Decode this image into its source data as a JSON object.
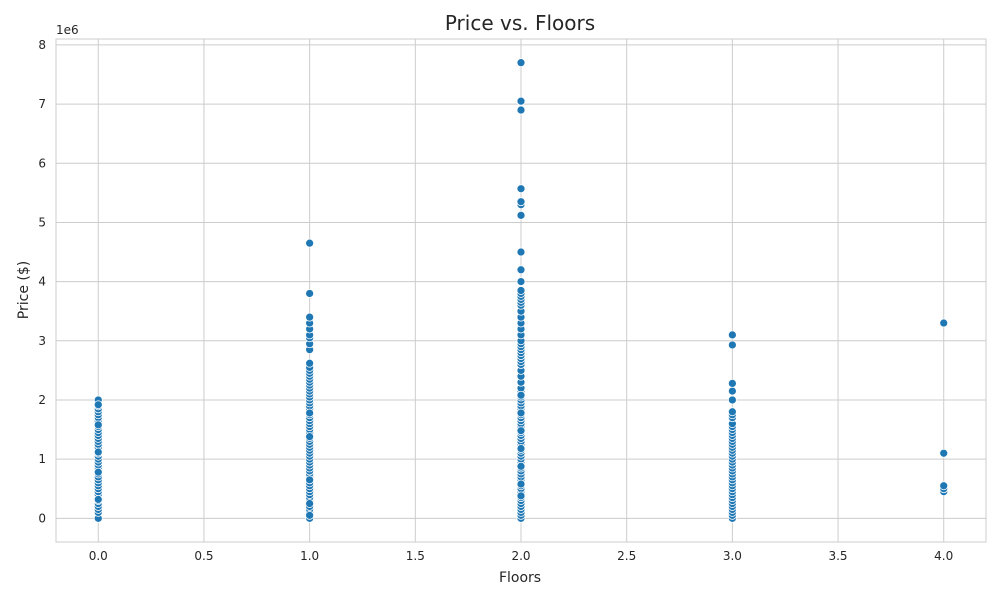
{
  "chart_data": {
    "type": "scatter",
    "title": "Price vs. Floors",
    "xlabel": "Floors",
    "ylabel": "Price ($)",
    "y_offset_label": "1e6",
    "xlim": [
      -0.2,
      4.2
    ],
    "ylim": [
      -0.4,
      8.1
    ],
    "x_ticks": [
      0.0,
      0.5,
      1.0,
      1.5,
      2.0,
      2.5,
      3.0,
      3.5,
      4.0
    ],
    "x_tick_labels": [
      "0.0",
      "0.5",
      "1.0",
      "1.5",
      "2.0",
      "2.5",
      "3.0",
      "3.5",
      "4.0"
    ],
    "y_ticks": [
      0,
      1,
      2,
      3,
      4,
      5,
      6,
      7,
      8
    ],
    "y_tick_labels": [
      "0",
      "1",
      "2",
      "3",
      "4",
      "5",
      "6",
      "7",
      "8"
    ],
    "grid": true,
    "style": "whitegrid",
    "point_color": "#1f77b4",
    "point_edge_color": "#ffffff",
    "series": [
      {
        "x": [
          0,
          0,
          0,
          0,
          0,
          0,
          0,
          0,
          0,
          0,
          0,
          0,
          0,
          0,
          0,
          0,
          0,
          0,
          0,
          0,
          0,
          0,
          0,
          0,
          0,
          0,
          0,
          0,
          0,
          0,
          0,
          0,
          0,
          0,
          0,
          0,
          0,
          0,
          0,
          0,
          0,
          0,
          0,
          0,
          0
        ],
        "y": [
          0.0,
          0.1,
          0.15,
          0.2,
          0.25,
          0.3,
          0.35,
          0.4,
          0.45,
          0.5,
          0.55,
          0.6,
          0.65,
          0.7,
          0.75,
          0.8,
          0.85,
          0.9,
          0.95,
          1.0,
          1.05,
          1.1,
          1.15,
          1.2,
          1.25,
          1.3,
          1.35,
          1.4,
          1.45,
          1.5,
          1.55,
          1.6,
          1.65,
          1.7,
          1.75,
          1.8,
          1.85,
          1.9,
          1.95,
          2.0,
          1.12,
          1.58,
          0.78,
          0.32,
          1.92
        ]
      },
      {
        "x": [
          1,
          1,
          1,
          1,
          1,
          1,
          1,
          1,
          1,
          1,
          1,
          1,
          1,
          1,
          1,
          1,
          1,
          1,
          1,
          1,
          1,
          1,
          1,
          1,
          1,
          1,
          1,
          1,
          1,
          1,
          1,
          1,
          1,
          1,
          1,
          1,
          1,
          1,
          1,
          1,
          1,
          1,
          1,
          1,
          1,
          1,
          1,
          1,
          1,
          1,
          1,
          1,
          1,
          1,
          1,
          1,
          1,
          1,
          1,
          1,
          1,
          1,
          1,
          1
        ],
        "y": [
          0.0,
          0.1,
          0.15,
          0.2,
          0.3,
          0.35,
          0.4,
          0.45,
          0.5,
          0.55,
          0.6,
          0.7,
          0.75,
          0.8,
          0.85,
          0.9,
          0.95,
          1.0,
          1.05,
          1.1,
          1.15,
          1.2,
          1.25,
          1.3,
          1.35,
          1.4,
          1.45,
          1.5,
          1.55,
          1.6,
          1.65,
          1.7,
          1.75,
          1.8,
          1.85,
          1.9,
          1.95,
          2.0,
          2.05,
          2.1,
          2.15,
          2.2,
          2.25,
          2.3,
          2.35,
          2.4,
          2.45,
          2.5,
          2.55,
          2.85,
          2.95,
          3.05,
          3.1,
          3.2,
          3.3,
          3.4,
          3.8,
          4.65,
          0.25,
          0.65,
          1.38,
          1.78,
          2.62,
          0.05
        ]
      },
      {
        "x": [
          2,
          2,
          2,
          2,
          2,
          2,
          2,
          2,
          2,
          2,
          2,
          2,
          2,
          2,
          2,
          2,
          2,
          2,
          2,
          2,
          2,
          2,
          2,
          2,
          2,
          2,
          2,
          2,
          2,
          2,
          2,
          2,
          2,
          2,
          2,
          2,
          2,
          2,
          2,
          2,
          2,
          2,
          2,
          2,
          2,
          2,
          2,
          2,
          2,
          2,
          2,
          2,
          2,
          2,
          2,
          2,
          2,
          2,
          2,
          2,
          2,
          2,
          2,
          2,
          2,
          2,
          2,
          2,
          2,
          2,
          2,
          2,
          2,
          2,
          2,
          2,
          2,
          2,
          2,
          2,
          2,
          2,
          2,
          2,
          2
        ],
        "y": [
          0.0,
          0.05,
          0.1,
          0.15,
          0.2,
          0.25,
          0.3,
          0.35,
          0.4,
          0.45,
          0.5,
          0.55,
          0.6,
          0.65,
          0.7,
          0.75,
          0.8,
          0.85,
          0.9,
          0.95,
          1.0,
          1.05,
          1.1,
          1.15,
          1.2,
          1.25,
          1.3,
          1.35,
          1.4,
          1.45,
          1.5,
          1.55,
          1.6,
          1.65,
          1.7,
          1.75,
          1.8,
          1.85,
          1.9,
          1.95,
          2.0,
          2.05,
          2.1,
          2.15,
          2.2,
          2.3,
          2.4,
          2.5,
          2.6,
          2.65,
          2.7,
          2.75,
          2.8,
          2.85,
          2.9,
          2.95,
          3.0,
          3.1,
          3.2,
          3.3,
          3.4,
          3.5,
          3.6,
          3.65,
          3.7,
          3.75,
          3.8,
          3.85,
          4.0,
          4.2,
          4.5,
          5.12,
          5.3,
          5.35,
          5.57,
          6.9,
          7.05,
          7.7,
          0.38,
          0.58,
          0.88,
          1.18,
          1.48,
          1.78,
          2.08
        ]
      },
      {
        "x": [
          3,
          3,
          3,
          3,
          3,
          3,
          3,
          3,
          3,
          3,
          3,
          3,
          3,
          3,
          3,
          3,
          3,
          3,
          3,
          3,
          3,
          3,
          3,
          3,
          3,
          3,
          3,
          3,
          3,
          3,
          3,
          3,
          3,
          3,
          3,
          3,
          3,
          3,
          3,
          3,
          3
        ],
        "y": [
          0.0,
          0.05,
          0.1,
          0.15,
          0.2,
          0.25,
          0.3,
          0.35,
          0.4,
          0.45,
          0.5,
          0.55,
          0.6,
          0.65,
          0.7,
          0.75,
          0.8,
          0.85,
          0.9,
          0.95,
          1.0,
          1.05,
          1.1,
          1.15,
          1.2,
          1.25,
          1.3,
          1.35,
          1.4,
          1.45,
          1.5,
          1.55,
          1.6,
          1.7,
          1.75,
          1.8,
          2.0,
          2.15,
          2.28,
          2.93,
          3.1
        ]
      },
      {
        "x": [
          4,
          4,
          4,
          4,
          4
        ],
        "y": [
          0.45,
          0.5,
          0.55,
          1.1,
          3.3
        ]
      }
    ]
  }
}
